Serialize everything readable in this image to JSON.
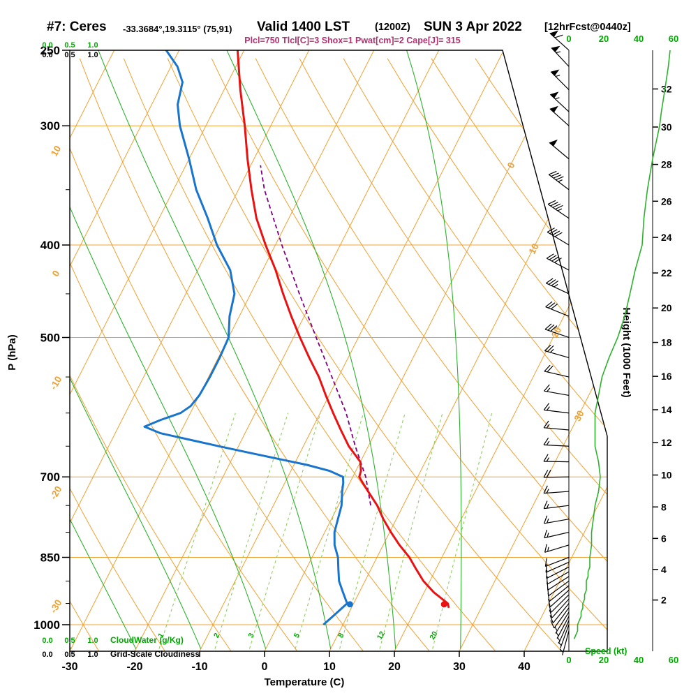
{
  "header": {
    "station": "#7: Ceres",
    "coords": "-33.3684°,19.3115° (75,91)",
    "valid": "Valid 1400 LST",
    "zulu": "(1200Z)",
    "date": "SUN 3 Apr 2022",
    "fcst": "[12hrFcst@0440z]",
    "indices": "Plcl=750 Tlcl[C]=3 Shox=1 Pwat[cm]=2 Cape[J]= 315"
  },
  "axes": {
    "pressure_label": "P (hPa)",
    "pressure_ticks": [
      250,
      300,
      400,
      500,
      700,
      850,
      1000
    ],
    "pressure_minor": [
      350,
      450,
      550,
      600,
      650,
      750,
      800,
      900,
      950
    ],
    "pressure_lines": [
      300,
      400,
      500,
      700,
      850,
      1000
    ],
    "temp_label": "Temperature (C)",
    "temp_ticks": [
      -30,
      -20,
      -10,
      0,
      10,
      20,
      30,
      40
    ],
    "height_label": "Height (1000 Feet)",
    "height_ticks": [
      2,
      4,
      6,
      8,
      10,
      12,
      14,
      16,
      18,
      20,
      22,
      24,
      26,
      28,
      30,
      32
    ],
    "speed_label": "Speed (kt)",
    "speed_ticks": [
      0,
      20,
      40,
      60
    ],
    "cloudwater_label": "CloudWater (g/Kg)",
    "cloudiness_label": "Grid-Scale Cloudiness",
    "cloud_scale": [
      "0.0",
      "0.5",
      "1.0"
    ]
  },
  "grid": {
    "isotherms": [
      -100,
      -90,
      -80,
      -70,
      -60,
      -50,
      -40,
      -30,
      -20,
      -10,
      0,
      10,
      20,
      30,
      40
    ],
    "isotherm_labels": [
      0,
      10,
      20,
      30
    ],
    "dry_adiabats": [
      -40,
      -30,
      -20,
      -10,
      0,
      10,
      20,
      30,
      40,
      50,
      60,
      70,
      80,
      90,
      100,
      110,
      120,
      130
    ],
    "dry_adiabat_labels": [
      10,
      0,
      -10,
      -20,
      -30
    ],
    "moist_adiabats": [
      -40,
      -30,
      -20,
      -10,
      0,
      10,
      20,
      30
    ],
    "mixing_ratios": [
      1,
      2,
      3,
      5,
      8,
      12,
      20
    ]
  },
  "chart_data": {
    "type": "line",
    "subtype": "skew-t-log-p sounding",
    "title": "Forecast sounding for Ceres, valid 1400 LST (1200Z) Sun 3 Apr 2022",
    "pressure_axis_hPa": [
      250,
      300,
      400,
      500,
      700,
      850,
      1000
    ],
    "temperature_axis_C": [
      -30,
      40
    ],
    "temperature_C": [
      [
        960,
        25
      ],
      [
        950,
        24.5
      ],
      [
        925,
        21.5
      ],
      [
        900,
        19
      ],
      [
        875,
        17
      ],
      [
        850,
        15
      ],
      [
        825,
        12.5
      ],
      [
        800,
        10.2
      ],
      [
        775,
        8
      ],
      [
        750,
        6
      ],
      [
        725,
        3.5
      ],
      [
        710,
        2
      ],
      [
        700,
        1
      ],
      [
        690,
        0.8
      ],
      [
        675,
        0
      ],
      [
        650,
        -3
      ],
      [
        625,
        -5.5
      ],
      [
        600,
        -8
      ],
      [
        575,
        -10.5
      ],
      [
        550,
        -13
      ],
      [
        525,
        -16
      ],
      [
        500,
        -19
      ],
      [
        475,
        -22
      ],
      [
        450,
        -25
      ],
      [
        425,
        -28
      ],
      [
        400,
        -31.5
      ],
      [
        375,
        -35
      ],
      [
        350,
        -38
      ],
      [
        325,
        -41
      ],
      [
        300,
        -44
      ],
      [
        275,
        -47.5
      ],
      [
        250,
        -51
      ]
    ],
    "dewpoint_C": [
      [
        1000,
        7
      ],
      [
        975,
        8
      ],
      [
        950,
        9
      ],
      [
        925,
        7.5
      ],
      [
        900,
        6
      ],
      [
        875,
        5
      ],
      [
        850,
        4
      ],
      [
        825,
        2.5
      ],
      [
        800,
        1.5
      ],
      [
        775,
        1
      ],
      [
        750,
        0.5
      ],
      [
        725,
        -0.5
      ],
      [
        710,
        -1
      ],
      [
        700,
        -1.5
      ],
      [
        690,
        -4
      ],
      [
        680,
        -8
      ],
      [
        670,
        -13
      ],
      [
        660,
        -18
      ],
      [
        650,
        -23
      ],
      [
        640,
        -28
      ],
      [
        630,
        -33
      ],
      [
        620,
        -36
      ],
      [
        610,
        -34
      ],
      [
        600,
        -31.5
      ],
      [
        590,
        -30.5
      ],
      [
        575,
        -30
      ],
      [
        550,
        -29.8
      ],
      [
        525,
        -29.8
      ],
      [
        500,
        -30
      ],
      [
        475,
        -31.5
      ],
      [
        450,
        -32.5
      ],
      [
        425,
        -35
      ],
      [
        400,
        -39
      ],
      [
        375,
        -42.5
      ],
      [
        350,
        -46.5
      ],
      [
        325,
        -50
      ],
      [
        300,
        -54
      ],
      [
        285,
        -56
      ],
      [
        270,
        -57
      ],
      [
        260,
        -59
      ],
      [
        250,
        -62
      ]
    ],
    "parcel_C": [
      [
        750,
        5
      ],
      [
        700,
        2
      ],
      [
        650,
        -2
      ],
      [
        600,
        -6
      ],
      [
        550,
        -11
      ],
      [
        500,
        -16.5
      ],
      [
        450,
        -22.5
      ],
      [
        400,
        -29
      ],
      [
        350,
        -36
      ],
      [
        330,
        -38.5
      ]
    ],
    "surface_dots": {
      "temperature": {
        "p": 952,
        "t": 24
      },
      "dewpoint": {
        "p": 952,
        "t": 9.5
      }
    },
    "winds_p_dir_kt": [
      [
        1015,
        195,
        5
      ],
      [
        1000,
        200,
        5
      ],
      [
        990,
        204,
        6
      ],
      [
        980,
        208,
        7
      ],
      [
        970,
        212,
        7
      ],
      [
        960,
        216,
        8
      ],
      [
        950,
        219,
        8
      ],
      [
        940,
        222,
        9
      ],
      [
        930,
        225,
        9
      ],
      [
        920,
        228,
        10
      ],
      [
        910,
        231,
        10
      ],
      [
        900,
        234,
        10
      ],
      [
        890,
        237,
        11
      ],
      [
        880,
        240,
        11
      ],
      [
        870,
        243,
        12
      ],
      [
        860,
        246,
        12
      ],
      [
        850,
        249,
        12
      ],
      [
        825,
        253,
        13
      ],
      [
        800,
        257,
        13
      ],
      [
        775,
        260,
        14
      ],
      [
        750,
        263,
        15
      ],
      [
        725,
        266,
        17
      ],
      [
        700,
        269,
        18
      ],
      [
        675,
        271,
        17
      ],
      [
        650,
        273,
        15
      ],
      [
        625,
        275,
        15
      ],
      [
        600,
        277,
        15
      ],
      [
        575,
        280,
        17
      ],
      [
        550,
        283,
        19
      ],
      [
        525,
        286,
        23
      ],
      [
        500,
        289,
        28
      ],
      [
        475,
        292,
        32
      ],
      [
        450,
        295,
        35
      ],
      [
        425,
        298,
        38
      ],
      [
        400,
        301,
        42
      ],
      [
        375,
        304,
        43
      ],
      [
        350,
        307,
        45
      ],
      [
        325,
        310,
        48
      ],
      [
        300,
        312,
        52
      ],
      [
        290,
        313,
        53
      ],
      [
        275,
        315,
        55
      ],
      [
        260,
        317,
        57
      ],
      [
        250,
        312,
        58
      ]
    ],
    "speed_scale_kt": [
      0,
      20,
      40,
      60
    ]
  },
  "colors": {
    "temperature": "#e81212",
    "dewpoint": "#1874cd",
    "parcel": "#800080",
    "grid_orange": "#f0a030",
    "grid_green": "#2db12d",
    "grid_green_light": "#8fce61",
    "green_text": "#00a900",
    "speed_curve": "#2db12d",
    "indices_text": "#b03070",
    "barbs": "#000000"
  }
}
